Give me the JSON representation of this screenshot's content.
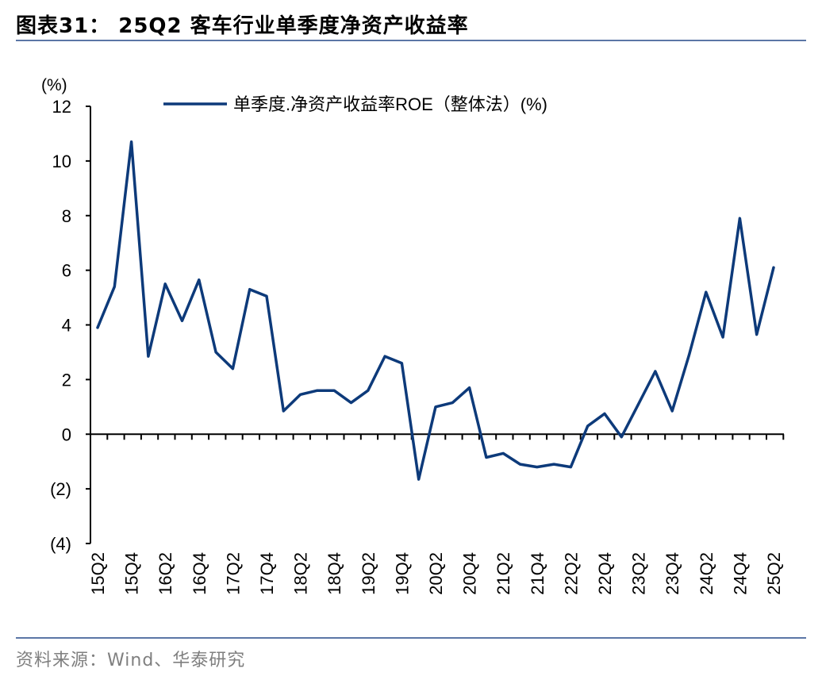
{
  "header": {
    "title": "图表31：  25Q2 客车行业单季度净资产收益率"
  },
  "footer": {
    "source": "资料来源：Wind、华泰研究"
  },
  "chart_data": {
    "type": "line",
    "unit_label": "(%)",
    "legend_position": "top-center",
    "grid": false,
    "ylim": [
      -4,
      12
    ],
    "y_ticks": [
      12,
      10,
      8,
      6,
      4,
      2,
      0,
      -2,
      -4
    ],
    "y_tick_labels": [
      "12",
      "10",
      "8",
      "6",
      "4",
      "2",
      "0",
      "(2)",
      "(4)"
    ],
    "x": [
      "15Q2",
      "15Q3",
      "15Q4",
      "16Q1",
      "16Q2",
      "16Q3",
      "16Q4",
      "17Q1",
      "17Q2",
      "17Q3",
      "17Q4",
      "18Q1",
      "18Q2",
      "18Q3",
      "18Q4",
      "19Q1",
      "19Q2",
      "19Q3",
      "19Q4",
      "20Q1",
      "20Q2",
      "20Q3",
      "20Q4",
      "21Q1",
      "21Q2",
      "21Q3",
      "21Q4",
      "22Q1",
      "22Q2",
      "22Q3",
      "22Q4",
      "23Q1",
      "23Q2",
      "23Q3",
      "23Q4",
      "24Q1",
      "24Q2",
      "24Q3",
      "24Q4",
      "25Q1",
      "25Q2"
    ],
    "x_tick_labels": [
      "15Q2",
      "15Q4",
      "16Q2",
      "16Q4",
      "17Q2",
      "17Q4",
      "18Q2",
      "18Q4",
      "19Q2",
      "19Q4",
      "20Q2",
      "20Q4",
      "21Q2",
      "21Q4",
      "22Q2",
      "22Q4",
      "23Q2",
      "23Q4",
      "24Q2",
      "24Q4",
      "25Q2"
    ],
    "series": [
      {
        "name": "单季度.净资产收益率ROE（整体法）(%)",
        "color": "#0d3a7a",
        "values": [
          3.9,
          5.4,
          10.7,
          2.85,
          5.5,
          4.15,
          5.65,
          3.0,
          2.4,
          5.3,
          5.05,
          0.85,
          1.45,
          1.6,
          1.6,
          1.15,
          1.6,
          2.85,
          2.6,
          -1.65,
          1.0,
          1.15,
          1.7,
          -0.85,
          -0.7,
          -1.1,
          -1.2,
          -1.1,
          -1.2,
          0.3,
          0.75,
          -0.1,
          1.1,
          2.3,
          0.85,
          2.9,
          5.2,
          3.55,
          7.9,
          3.65,
          6.1
        ]
      }
    ]
  }
}
